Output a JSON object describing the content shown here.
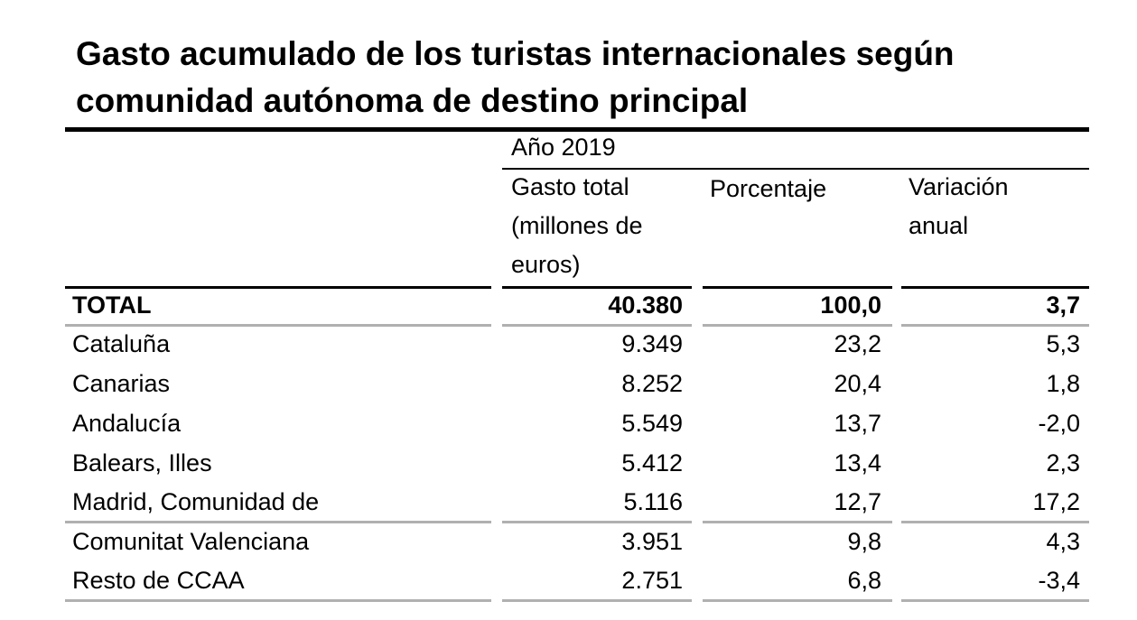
{
  "title": "Gasto acumulado de los turistas internacionales según comunidad autónoma de destino principal",
  "header": {
    "year": "Año 2019",
    "col1": [
      "Gasto total",
      "(millones de",
      "euros)"
    ],
    "col2": "Porcentaje",
    "col3": [
      "Variación",
      "anual"
    ]
  },
  "rows": [
    {
      "name": "TOTAL",
      "gasto": "40.380",
      "porcentaje": "100,0",
      "variacion": "3,7"
    },
    {
      "name": "Cataluña",
      "gasto": "9.349",
      "porcentaje": "23,2",
      "variacion": "5,3"
    },
    {
      "name": "Canarias",
      "gasto": "8.252",
      "porcentaje": "20,4",
      "variacion": "1,8"
    },
    {
      "name": "Andalucía",
      "gasto": "5.549",
      "porcentaje": "13,7",
      "variacion": "-2,0"
    },
    {
      "name": "Balears, Illes",
      "gasto": "5.412",
      "porcentaje": "13,4",
      "variacion": "2,3"
    },
    {
      "name": "Madrid, Comunidad de",
      "gasto": "5.116",
      "porcentaje": "12,7",
      "variacion": "17,2"
    },
    {
      "name": "Comunitat Valenciana",
      "gasto": "3.951",
      "porcentaje": "9,8",
      "variacion": "4,3"
    },
    {
      "name": "Resto de CCAA",
      "gasto": "2.751",
      "porcentaje": "6,8",
      "variacion": "-3,4"
    }
  ]
}
